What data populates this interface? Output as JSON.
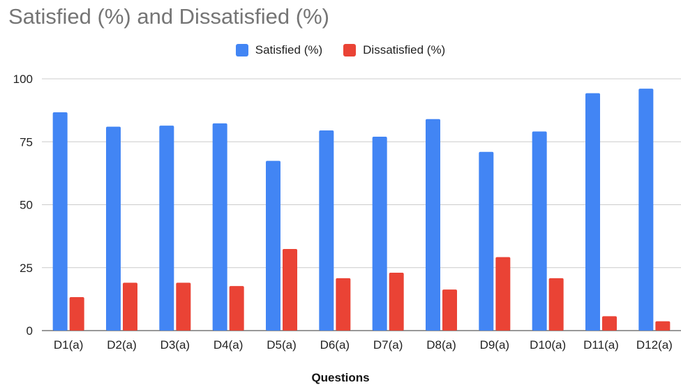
{
  "chart_data": {
    "type": "bar",
    "title": "Satisfied (%) and Dissatisfied (%)",
    "xlabel": "Questions",
    "ylabel": "",
    "ylim": [
      0,
      100
    ],
    "yticks": [
      0,
      25,
      50,
      75,
      100
    ],
    "grid": true,
    "legend_position": "top-center",
    "categories": [
      "D1(a)",
      "D2(a)",
      "D3(a)",
      "D4(a)",
      "D5(a)",
      "D6(a)",
      "D7(a)",
      "D8(a)",
      "D9(a)",
      "D10(a)",
      "D11(a)",
      "D12(a)"
    ],
    "series": [
      {
        "name": "Satisfied (%)",
        "color": "#4285f4",
        "values": [
          86.7,
          81.0,
          81.4,
          82.3,
          67.4,
          79.5,
          77.0,
          84.0,
          71.0,
          79.1,
          94.3,
          96.1
        ]
      },
      {
        "name": "Dissatisfied (%)",
        "color": "#ea4335",
        "values": [
          13.3,
          19.0,
          19.0,
          17.7,
          32.4,
          20.8,
          23.0,
          16.3,
          29.2,
          20.8,
          5.7,
          3.7
        ]
      }
    ]
  }
}
